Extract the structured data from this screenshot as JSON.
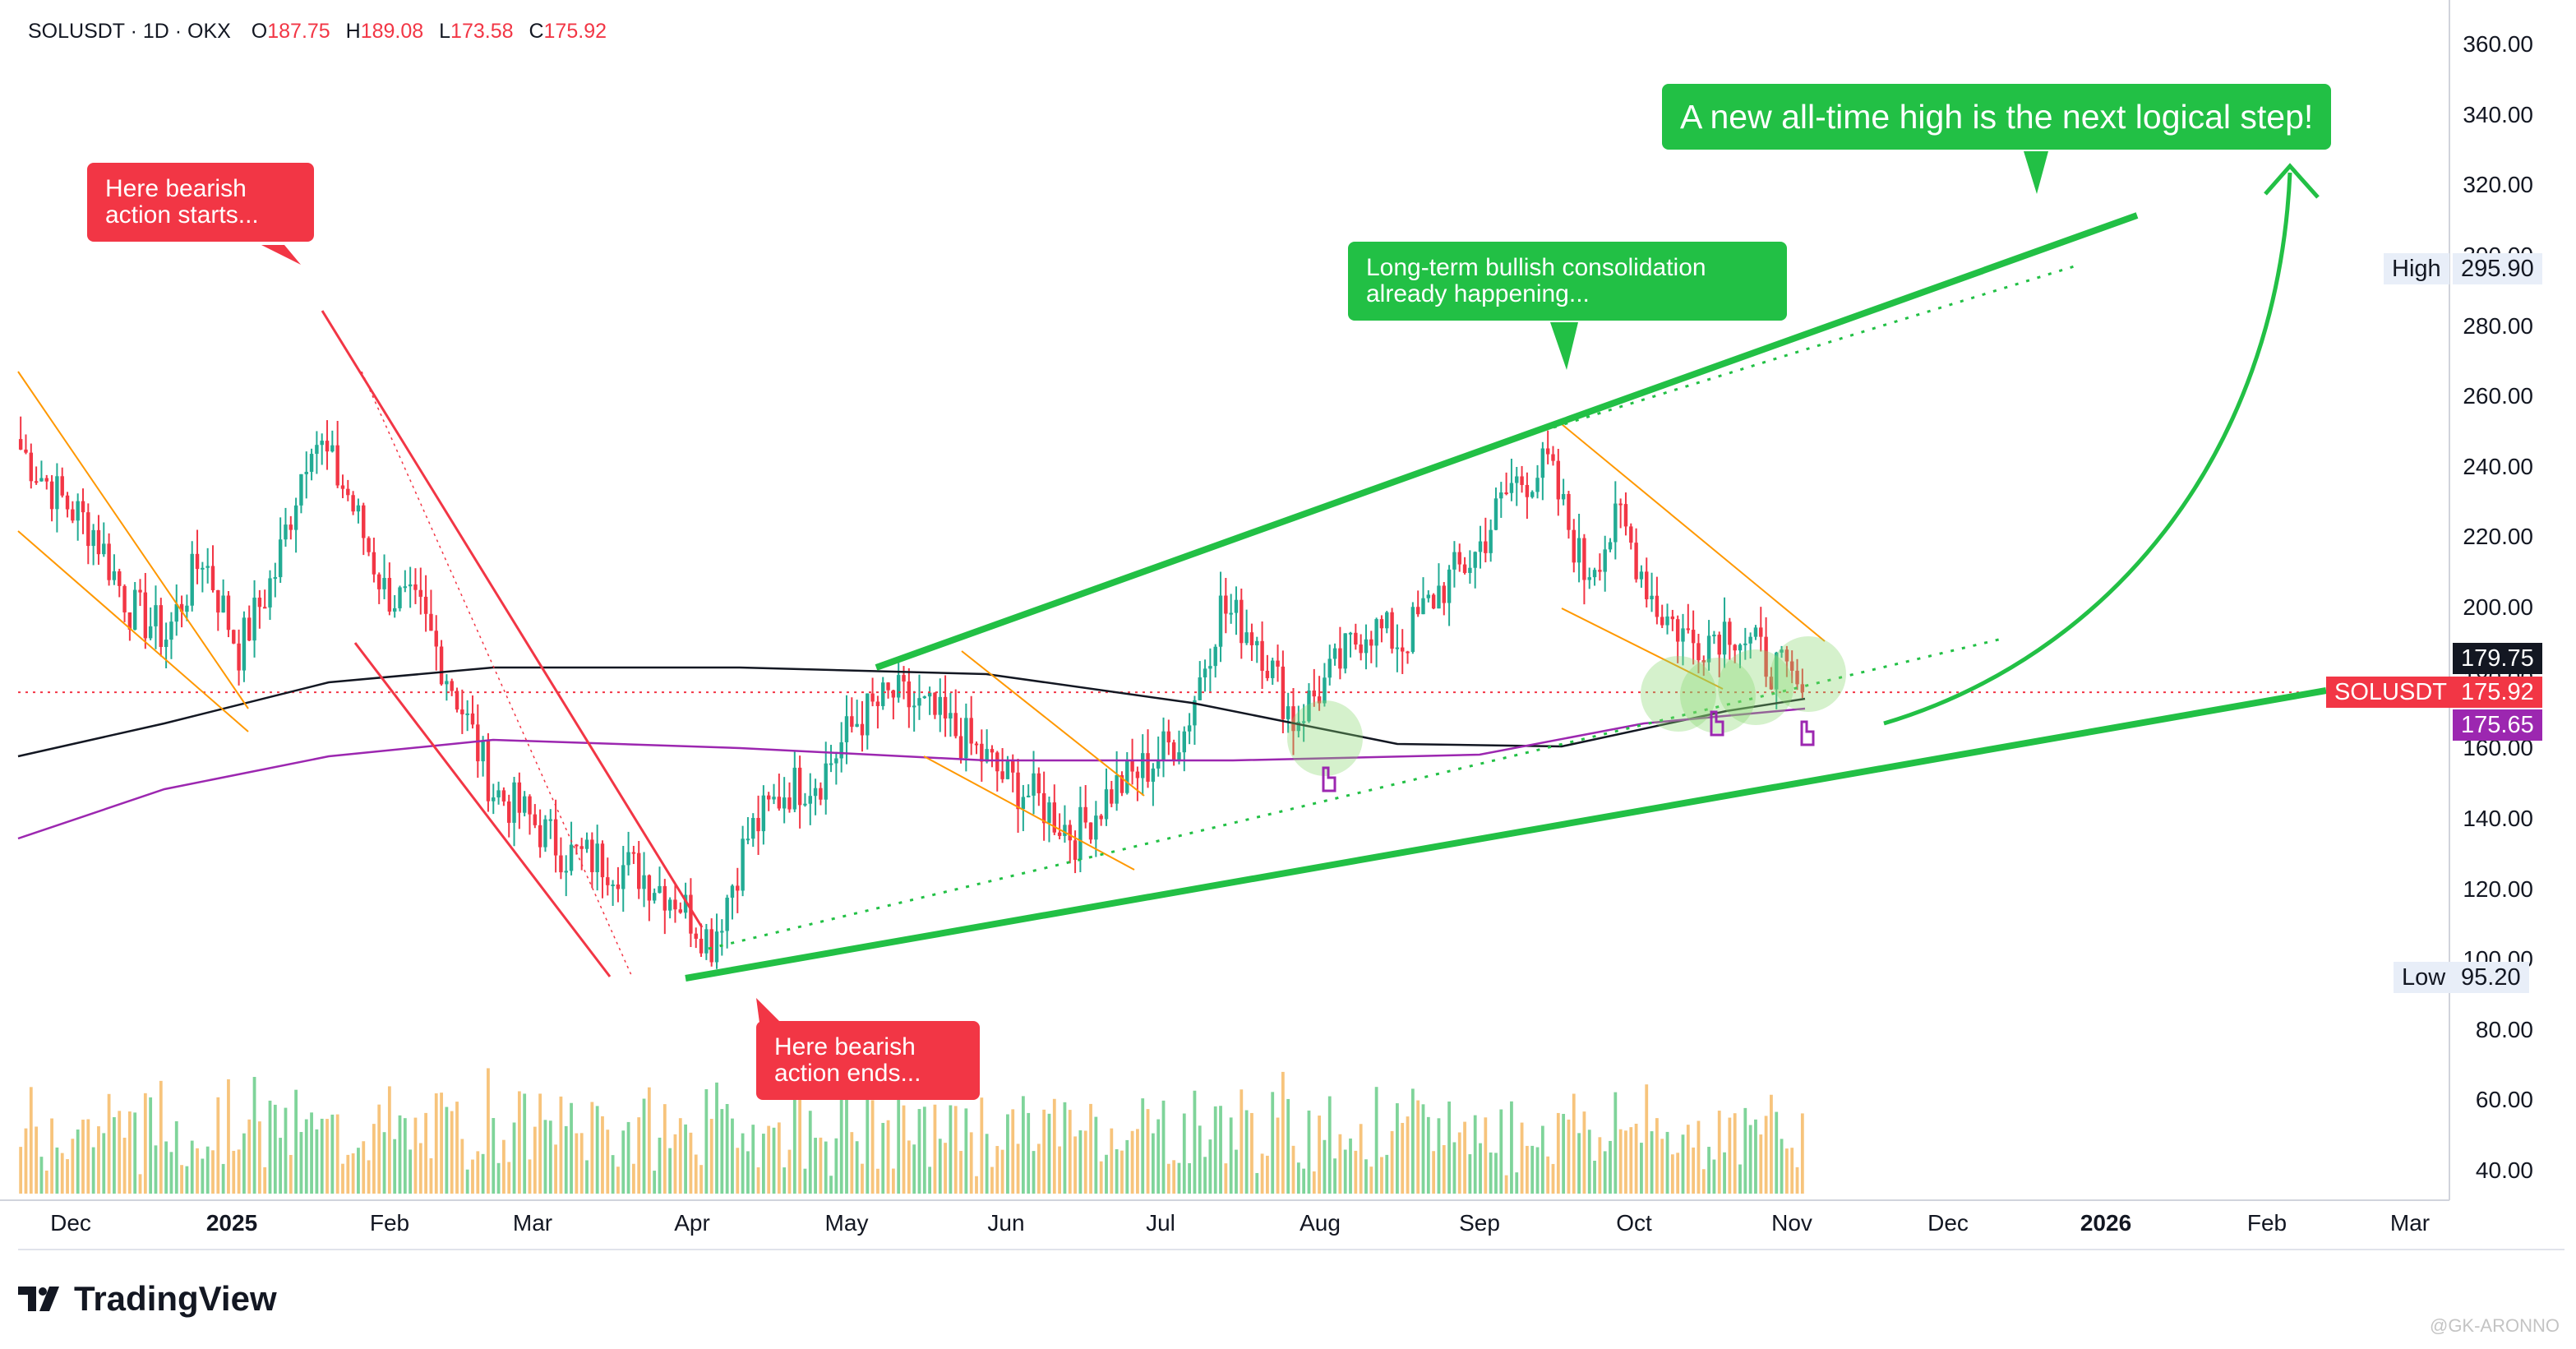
{
  "legend": {
    "symbol": "SOLUSDT · 1D · OKX",
    "o_label": "O",
    "o": "187.75",
    "h_label": "H",
    "h": "189.08",
    "l_label": "L",
    "l": "173.58",
    "c_label": "C",
    "c": "175.92"
  },
  "annotations": {
    "bearish_start": "Here bearish action starts...",
    "bearish_end": "Here bearish action ends...",
    "consolidation": "Long-term bullish consolidation already happening...",
    "ath": "A new all-time high is the next logical step!"
  },
  "price_axis": {
    "ticks": [
      "360.00",
      "340.00",
      "320.00",
      "300.00",
      "280.00",
      "260.00",
      "240.00",
      "220.00",
      "200.00",
      "180.00",
      "160.00",
      "140.00",
      "120.00",
      "100.00",
      "80.00",
      "60.00",
      "40.00"
    ],
    "high_label": "High",
    "high_value": "295.90",
    "low_label": "Low",
    "low_value": "95.20",
    "tag_ma": "179.75",
    "tag_symbol": "SOLUSDT",
    "tag_last": "175.92",
    "tag_ma2": "175.65"
  },
  "time_axis": [
    "Dec",
    "2025",
    "Feb",
    "Mar",
    "Apr",
    "May",
    "Jun",
    "Jul",
    "Aug",
    "Sep",
    "Oct",
    "Nov",
    "Dec",
    "2026",
    "Feb",
    "Mar"
  ],
  "branding": {
    "name": "TradingView",
    "watermark": "@GK-ARONNO"
  },
  "colors": {
    "up": "#22ab94",
    "down": "#f23645",
    "bull_line": "#22c045",
    "ma_long": "#131722",
    "ma_mid": "#9c27b0",
    "channel": "#ff9800",
    "volume_up": "#7fd49a",
    "volume_down": "#f7c47c"
  },
  "chart_data": {
    "type": "candlestick",
    "symbol": "SOLUSDT",
    "interval": "1D",
    "exchange": "OKX",
    "ylim": [
      30,
      370
    ],
    "price_series": {
      "dates": [
        "2024-11-25",
        "2024-12-02",
        "2024-12-09",
        "2024-12-16",
        "2024-12-23",
        "2024-12-30",
        "2025-01-06",
        "2025-01-13",
        "2025-01-20",
        "2025-01-27",
        "2025-02-03",
        "2025-02-10",
        "2025-02-17",
        "2025-02-24",
        "2025-03-03",
        "2025-03-10",
        "2025-03-17",
        "2025-03-24",
        "2025-03-31",
        "2025-04-07",
        "2025-04-14",
        "2025-04-21",
        "2025-04-28",
        "2025-05-05",
        "2025-05-12",
        "2025-05-19",
        "2025-05-26",
        "2025-06-02",
        "2025-06-09",
        "2025-06-16",
        "2025-06-23",
        "2025-06-30",
        "2025-07-07",
        "2025-07-14",
        "2025-07-21",
        "2025-07-28",
        "2025-08-04",
        "2025-08-11",
        "2025-08-18",
        "2025-08-25",
        "2025-09-01",
        "2025-09-08",
        "2025-09-15",
        "2025-09-22",
        "2025-09-29",
        "2025-10-06",
        "2025-10-13",
        "2025-10-20",
        "2025-10-27",
        "2025-11-03"
      ],
      "close": [
        245,
        232,
        222,
        200,
        192,
        215,
        188,
        210,
        250,
        232,
        205,
        198,
        175,
        148,
        140,
        130,
        128,
        125,
        118,
        105,
        135,
        148,
        152,
        168,
        175,
        170,
        162,
        152,
        145,
        135,
        148,
        155,
        165,
        200,
        192,
        168,
        180,
        195,
        190,
        205,
        215,
        235,
        240,
        210,
        225,
        200,
        190,
        195,
        185,
        175.92
      ]
    },
    "moving_averages": [
      {
        "name": "MA long",
        "values_note": "",
        "last": 179.75
      },
      {
        "name": "MA mid",
        "last": 175.65
      }
    ],
    "last_price": 175.92,
    "session_high": 295.9,
    "session_low": 95.2
  }
}
